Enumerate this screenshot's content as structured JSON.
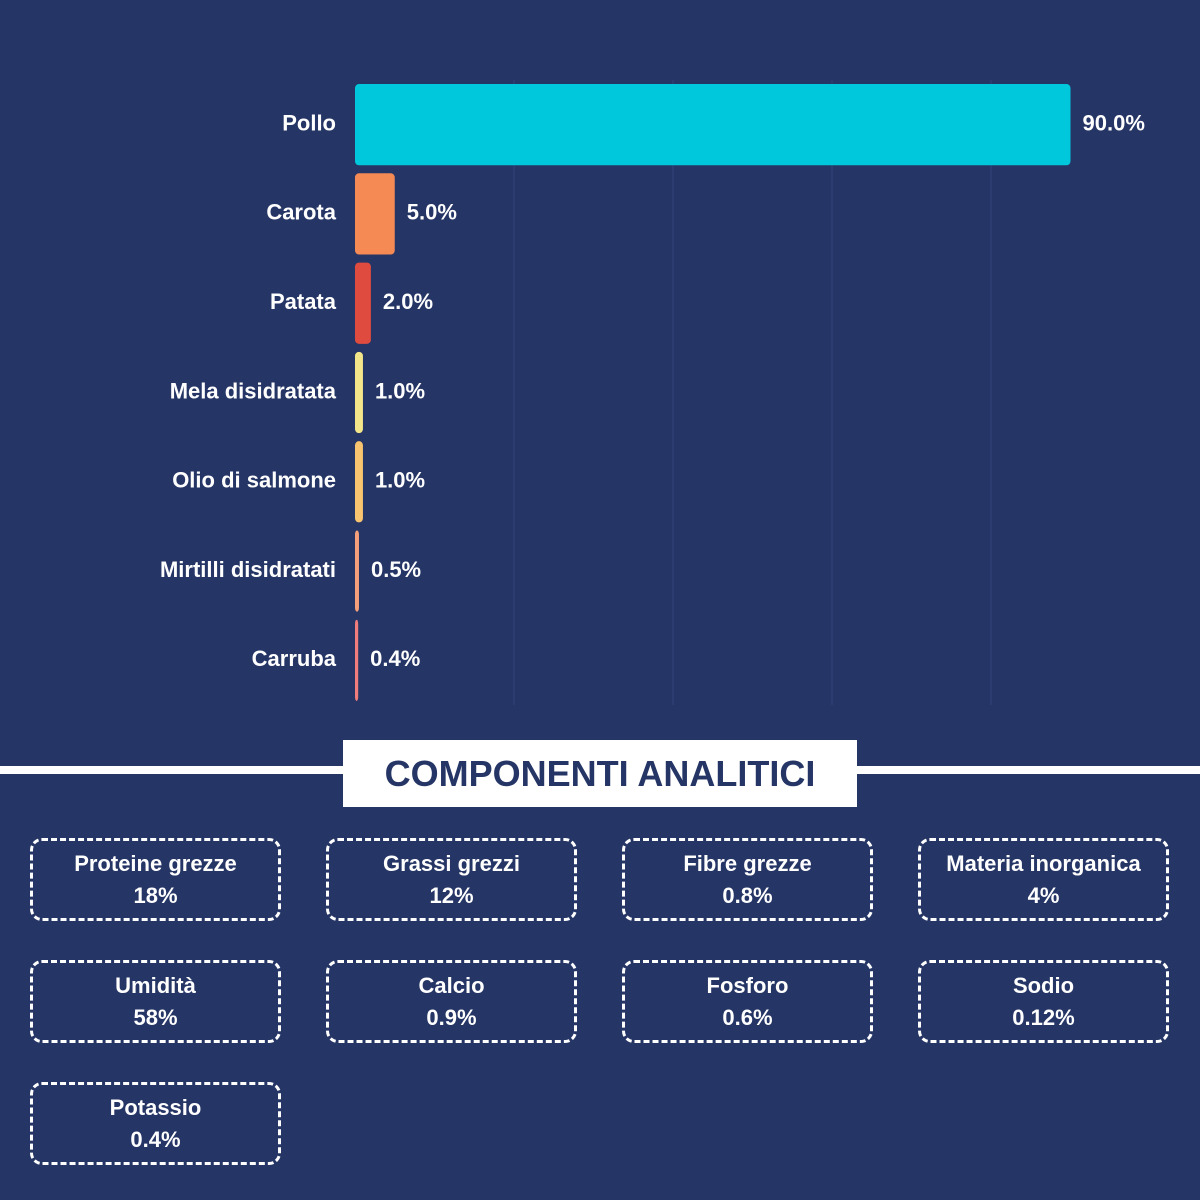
{
  "chart_data": {
    "type": "bar",
    "orientation": "horizontal",
    "categories": [
      "Pollo",
      "Carota",
      "Patata",
      "Mela disidratata",
      "Olio di salmone",
      "Mirtilli disidratati",
      "Carruba"
    ],
    "values": [
      90.0,
      5.0,
      2.0,
      1.0,
      1.0,
      0.5,
      0.4
    ],
    "value_labels": [
      "90.0%",
      "5.0%",
      "2.0%",
      "1.0%",
      "1.0%",
      "0.5%",
      "0.4%"
    ],
    "colors": [
      "#00c8dc",
      "#f58a55",
      "#df4b3f",
      "#f3e68a",
      "#f8c470",
      "#f5a07a",
      "#f07c7c"
    ],
    "xlim": [
      0,
      100
    ],
    "xticks": [
      20,
      40,
      60,
      80
    ],
    "grid": true
  },
  "components": {
    "title": "COMPONENTI ANALITICI",
    "items": [
      {
        "name": "Proteine grezze",
        "value": "18%"
      },
      {
        "name": "Grassi grezzi",
        "value": "12%"
      },
      {
        "name": "Fibre grezze",
        "value": "0.8%"
      },
      {
        "name": "Materia inorganica",
        "value": "4%"
      },
      {
        "name": "Umidità",
        "value": "58%"
      },
      {
        "name": "Calcio",
        "value": "0.9%"
      },
      {
        "name": "Fosforo",
        "value": "0.6%"
      },
      {
        "name": "Sodio",
        "value": "0.12%"
      },
      {
        "name": "Potassio",
        "value": "0.4%"
      }
    ]
  }
}
